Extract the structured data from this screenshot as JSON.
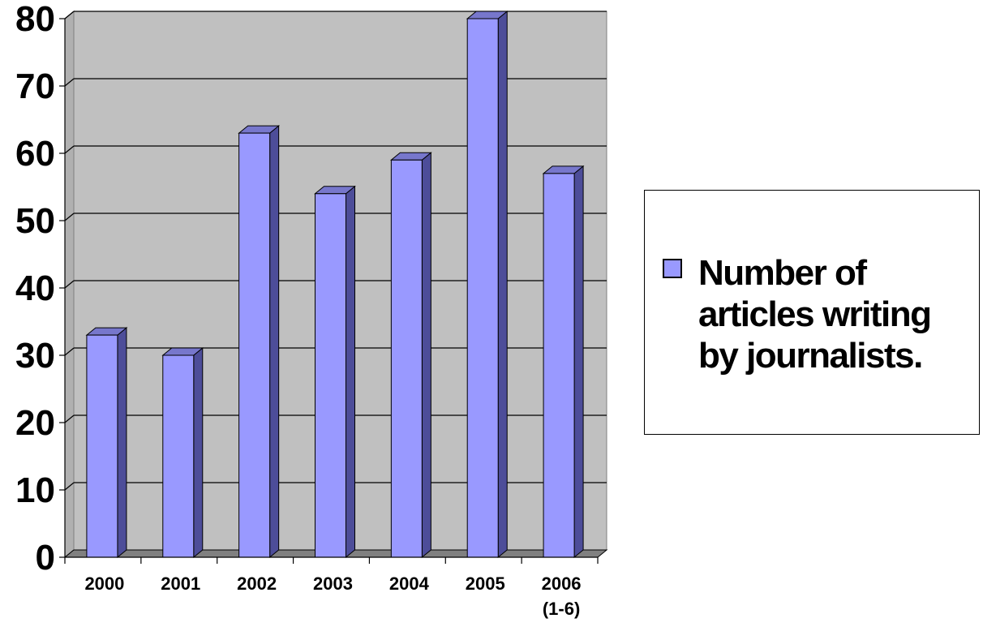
{
  "chart_data": {
    "type": "bar",
    "categories": [
      "2000",
      "2001",
      "2002",
      "2003",
      "2004",
      "2005",
      "2006 (1-6)"
    ],
    "category_lines": [
      [
        "2000"
      ],
      [
        "2001"
      ],
      [
        "2002"
      ],
      [
        "2003"
      ],
      [
        "2004"
      ],
      [
        "2005"
      ],
      [
        "2006",
        "(1-6)"
      ]
    ],
    "series": [
      {
        "name": "Number of articles writing by journalists.",
        "values": [
          33,
          30,
          63,
          54,
          59,
          80,
          57
        ]
      }
    ],
    "title": "",
    "xlabel": "",
    "ylabel": "",
    "ylim": [
      0,
      80
    ],
    "yticks": [
      0,
      10,
      20,
      30,
      40,
      50,
      60,
      70,
      80
    ],
    "grid": true,
    "legend_position": "right",
    "colors": {
      "bar_front": "#9999ff",
      "bar_side": "#4d4d99",
      "bar_top": "#7777cc",
      "plot_back": "#c0c0c0",
      "plot_floor": "#808080",
      "plot_wall": "#b0b0b0"
    }
  }
}
